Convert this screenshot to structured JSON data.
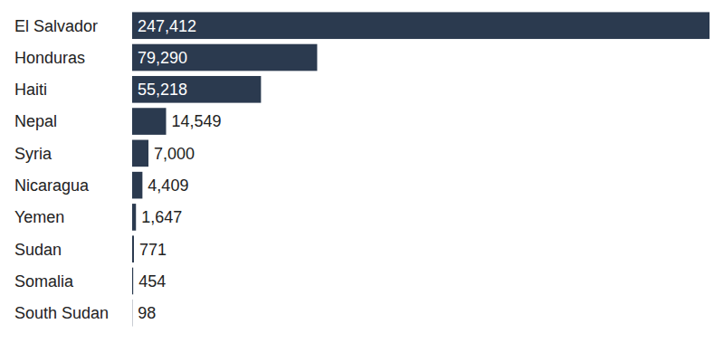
{
  "chart_data": {
    "type": "bar",
    "orientation": "horizontal",
    "categories": [
      "El Salvador",
      "Honduras",
      "Haiti",
      "Nepal",
      "Syria",
      "Nicaragua",
      "Yemen",
      "Sudan",
      "Somalia",
      "South Sudan"
    ],
    "values": [
      247412,
      79290,
      55218,
      14549,
      7000,
      4409,
      1647,
      771,
      454,
      98
    ],
    "value_labels": [
      "247,412",
      "79,290",
      "55,218",
      "14,549",
      "7,000",
      "4,409",
      "1,647",
      "771",
      "454",
      "98"
    ],
    "color": "#2b3a4f",
    "data_labels": true,
    "tick_labels": false,
    "grid": false
  }
}
